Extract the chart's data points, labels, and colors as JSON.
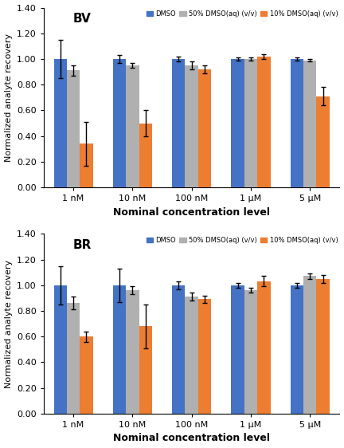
{
  "categories": [
    "1 nM",
    "10 nM",
    "100 nM",
    "1 μM",
    "5 μM"
  ],
  "BV": {
    "label": "BV",
    "DMSO": [
      1.0,
      1.0,
      1.0,
      1.0,
      1.0
    ],
    "50pct": [
      0.91,
      0.95,
      0.95,
      1.0,
      0.99
    ],
    "10pct": [
      0.34,
      0.5,
      0.92,
      1.02,
      0.71
    ],
    "DMSO_err": [
      0.15,
      0.03,
      0.02,
      0.01,
      0.01
    ],
    "50pct_err": [
      0.04,
      0.02,
      0.03,
      0.01,
      0.01
    ],
    "10pct_err": [
      0.17,
      0.1,
      0.03,
      0.02,
      0.07
    ]
  },
  "BR": {
    "label": "BR",
    "DMSO": [
      1.0,
      1.0,
      1.0,
      1.0,
      1.0
    ],
    "50pct": [
      0.86,
      0.96,
      0.91,
      0.96,
      1.07
    ],
    "10pct": [
      0.6,
      0.68,
      0.89,
      1.03,
      1.05
    ],
    "DMSO_err": [
      0.15,
      0.13,
      0.03,
      0.02,
      0.02
    ],
    "50pct_err": [
      0.05,
      0.03,
      0.03,
      0.02,
      0.02
    ],
    "10pct_err": [
      0.04,
      0.17,
      0.03,
      0.04,
      0.03
    ]
  },
  "colors": {
    "DMSO": "#4472C4",
    "50pct": "#B0B0B0",
    "10pct": "#ED7D31"
  },
  "legend_labels": [
    "DMSO",
    "50% DMSO(aq) (v/v)",
    "10% DMSO(aq) (v/v)"
  ],
  "ylabel": "Normalized analyte recovery",
  "xlabel": "Nominal concentration level",
  "ylim": [
    0.0,
    1.4
  ],
  "yticks": [
    0.0,
    0.2,
    0.4,
    0.6,
    0.8,
    1.0,
    1.2,
    1.4
  ],
  "bar_width": 0.22,
  "background_color": "#FFFFFF"
}
